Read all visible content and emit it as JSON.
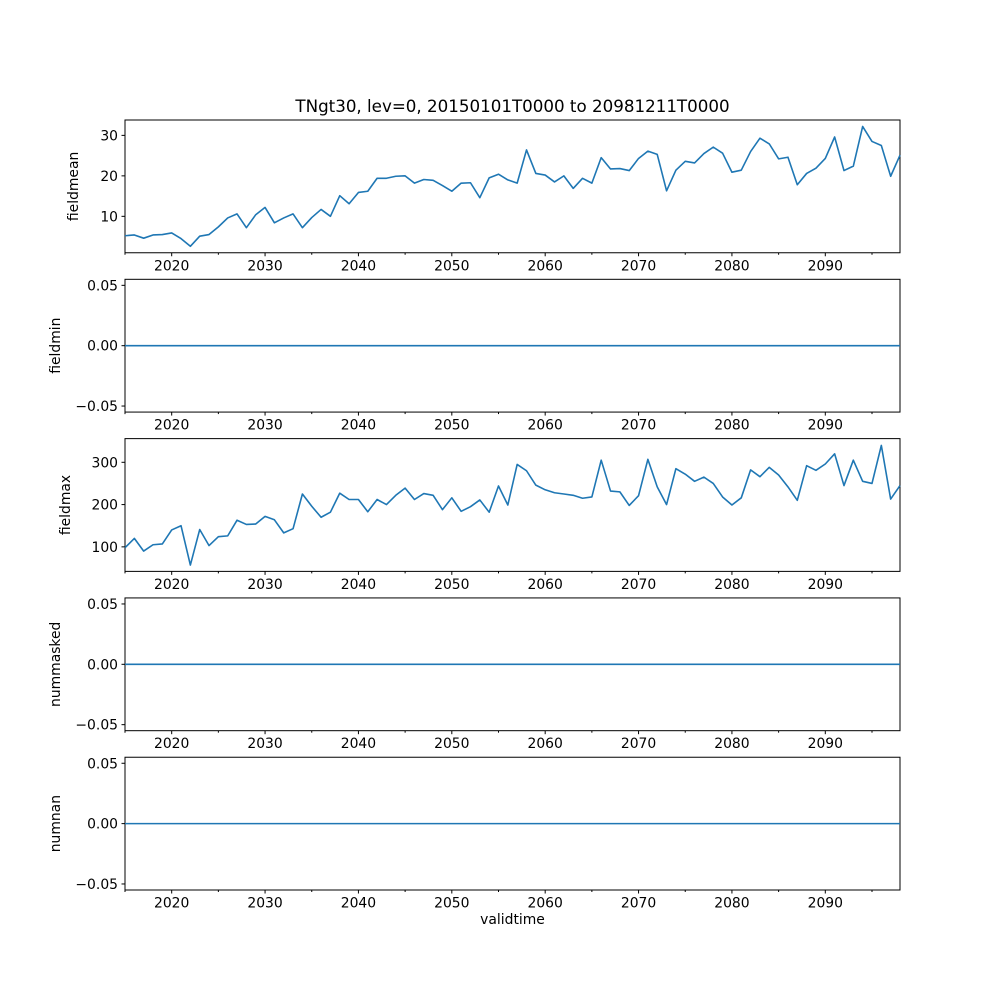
{
  "figure": {
    "title": "TNgt30, lev=0, 20150101T0000 to 20981211T0000",
    "xlabel": "validtime",
    "background": "#ffffff",
    "text_color": "#000000"
  },
  "chart_data": {
    "type": "line",
    "title": "TNgt30, lev=0, 20150101T0000 to 20981211T0000",
    "xlabel": "validtime",
    "line_color": "#1f77b4",
    "grid": false,
    "legend": "none",
    "xlim": [
      2015,
      2098
    ],
    "x_major_ticks": [
      2020,
      2030,
      2040,
      2050,
      2060,
      2070,
      2080,
      2090
    ],
    "x_minor_ticks_start": 2015,
    "x_minor_step": 5,
    "x": [
      2015,
      2016,
      2017,
      2018,
      2019,
      2020,
      2021,
      2022,
      2023,
      2024,
      2025,
      2026,
      2027,
      2028,
      2029,
      2030,
      2031,
      2032,
      2033,
      2034,
      2035,
      2036,
      2037,
      2038,
      2039,
      2040,
      2041,
      2042,
      2043,
      2044,
      2045,
      2046,
      2047,
      2048,
      2049,
      2050,
      2051,
      2052,
      2053,
      2054,
      2055,
      2056,
      2057,
      2058,
      2059,
      2060,
      2061,
      2062,
      2063,
      2064,
      2065,
      2066,
      2067,
      2068,
      2069,
      2070,
      2071,
      2072,
      2073,
      2074,
      2075,
      2076,
      2077,
      2078,
      2079,
      2080,
      2081,
      2082,
      2083,
      2084,
      2085,
      2086,
      2087,
      2088,
      2089,
      2090,
      2091,
      2092,
      2093,
      2094,
      2095,
      2096,
      2097,
      2098
    ],
    "subplots": [
      {
        "ylabel": "fieldmean",
        "ylim": [
          1.0,
          33.8
        ],
        "ytick_values": [
          10,
          20,
          30
        ],
        "ytick_labels": [
          "10",
          "20",
          "30"
        ],
        "values": [
          5.2,
          5.4,
          4.6,
          5.4,
          5.5,
          5.9,
          4.5,
          2.6,
          5.1,
          5.5,
          7.4,
          9.6,
          10.6,
          7.2,
          10.4,
          12.2,
          8.4,
          9.6,
          10.6,
          7.2,
          9.7,
          11.7,
          10.0,
          15.1,
          13.1,
          15.9,
          16.2,
          19.4,
          19.4,
          19.9,
          20.0,
          18.2,
          19.1,
          18.9,
          17.6,
          16.2,
          18.2,
          18.3,
          14.6,
          19.5,
          20.4,
          19.0,
          18.2,
          26.4,
          20.6,
          20.2,
          18.5,
          20.0,
          16.9,
          19.4,
          18.2,
          24.5,
          21.7,
          21.8,
          21.3,
          24.3,
          26.1,
          25.3,
          16.3,
          21.4,
          23.6,
          23.2,
          25.5,
          27.1,
          25.6,
          20.9,
          21.4,
          26.0,
          29.3,
          27.9,
          24.2,
          24.6,
          17.8,
          20.6,
          21.9,
          24.3,
          29.6,
          21.3,
          22.4,
          32.2,
          28.5,
          27.5,
          19.9,
          25.1
        ]
      },
      {
        "ylabel": "fieldmin",
        "ylim": [
          -0.055,
          0.055
        ],
        "ytick_values": [
          0.05,
          0.0,
          -0.05
        ],
        "ytick_labels": [
          "0.05",
          "0.00",
          "−0.05"
        ],
        "constant": 0
      },
      {
        "ylabel": "fieldmax",
        "ylim": [
          42,
          356
        ],
        "ytick_values": [
          100,
          200,
          300
        ],
        "ytick_labels": [
          "100",
          "200",
          "300"
        ],
        "values": [
          98,
          120,
          90,
          105,
          107,
          140,
          150,
          57,
          141,
          103,
          124,
          126,
          163,
          153,
          154,
          172,
          164,
          133,
          143,
          225,
          196,
          170,
          182,
          227,
          212,
          212,
          183,
          212,
          200,
          222,
          239,
          212,
          226,
          222,
          188,
          216,
          184,
          195,
          211,
          182,
          244,
          199,
          295,
          280,
          246,
          235,
          228,
          225,
          222,
          215,
          218,
          305,
          232,
          230,
          198,
          221,
          307,
          242,
          200,
          285,
          272,
          255,
          265,
          250,
          218,
          199,
          216,
          282,
          266,
          288,
          270,
          242,
          210,
          292,
          281,
          296,
          320,
          245,
          305,
          255,
          250,
          340,
          213,
          245
        ]
      },
      {
        "ylabel": "nummasked",
        "ylim": [
          -0.055,
          0.055
        ],
        "ytick_values": [
          0.05,
          0.0,
          -0.05
        ],
        "ytick_labels": [
          "0.05",
          "0.00",
          "−0.05"
        ],
        "constant": 0
      },
      {
        "ylabel": "numnan",
        "ylim": [
          -0.055,
          0.055
        ],
        "ytick_values": [
          0.05,
          0.0,
          -0.05
        ],
        "ytick_labels": [
          "0.05",
          "0.00",
          "−0.05"
        ],
        "constant": 0
      }
    ]
  }
}
